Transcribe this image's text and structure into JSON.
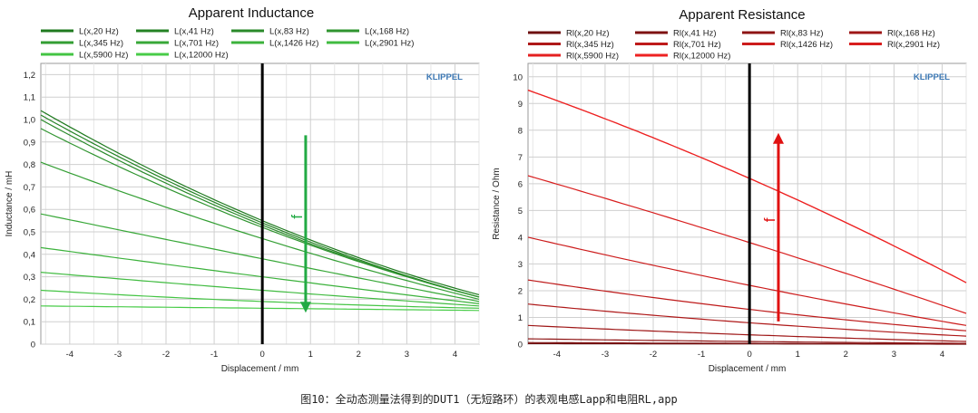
{
  "chart_data": [
    {
      "type": "line",
      "title": "Apparent Inductance",
      "xlabel": "Displacement / mm",
      "ylabel": "Inductance / mH",
      "xlim": [
        -4.6,
        4.5
      ],
      "ylim": [
        0,
        1.25
      ],
      "x_ticks": [
        -4,
        -3,
        -2,
        -1,
        0,
        1,
        2,
        3,
        4
      ],
      "y_ticks": [
        0,
        0.1,
        0.2,
        0.3,
        0.4,
        0.5,
        0.6,
        0.7,
        0.8,
        0.9,
        1.0,
        1.1,
        1.2
      ],
      "x_tick_labels": [
        "-4",
        "-3",
        "-2",
        "-1",
        "0",
        "1",
        "2",
        "3",
        "4"
      ],
      "y_tick_labels": [
        "0",
        "0,1",
        "0,2",
        "0,3",
        "0,4",
        "0,5",
        "0,6",
        "0,7",
        "0,8",
        "0,9",
        "1,0",
        "1,1",
        "1,2"
      ],
      "grid": true,
      "legend_position": "top",
      "watermark": "KLIPPEL",
      "annotation": "f",
      "arrow": {
        "direction": "down",
        "color": "#22aa44",
        "x": 0.9,
        "y_from": 0.93,
        "y_to": 0.14
      },
      "x": [
        -4.6,
        0,
        4.5
      ],
      "series": [
        {
          "name": "L(x,20 Hz)",
          "color": "#1f7a1f",
          "values": [
            1.04,
            0.55,
            0.22
          ]
        },
        {
          "name": "L(x,41 Hz)",
          "color": "#248224",
          "values": [
            1.02,
            0.54,
            0.21
          ]
        },
        {
          "name": "L(x,83 Hz)",
          "color": "#2a8a2a",
          "values": [
            1.0,
            0.53,
            0.21
          ]
        },
        {
          "name": "L(x,168 Hz)",
          "color": "#2f942f",
          "values": [
            0.96,
            0.52,
            0.21
          ]
        },
        {
          "name": "L(x,345 Hz)",
          "color": "#339e33",
          "values": [
            0.81,
            0.47,
            0.2
          ]
        },
        {
          "name": "L(x,701 Hz)",
          "color": "#38a838",
          "values": [
            0.58,
            0.38,
            0.19
          ]
        },
        {
          "name": "L(x,1426 Hz)",
          "color": "#3cb23c",
          "values": [
            0.43,
            0.3,
            0.18
          ]
        },
        {
          "name": "L(x,2901 Hz)",
          "color": "#40bb40",
          "values": [
            0.32,
            0.24,
            0.17
          ]
        },
        {
          "name": "L(x,5900 Hz)",
          "color": "#44c444",
          "values": [
            0.24,
            0.19,
            0.16
          ]
        },
        {
          "name": "L(x,12000 Hz)",
          "color": "#48cc48",
          "values": [
            0.17,
            0.16,
            0.15
          ]
        }
      ]
    },
    {
      "type": "line",
      "title": "Apparent Resistance",
      "xlabel": "Displacement / mm",
      "ylabel": "Resistance / Ohm",
      "xlim": [
        -4.6,
        4.5
      ],
      "ylim": [
        0,
        10.5
      ],
      "x_ticks": [
        -4,
        -3,
        -2,
        -1,
        0,
        1,
        2,
        3,
        4
      ],
      "y_ticks": [
        0,
        1,
        2,
        3,
        4,
        5,
        6,
        7,
        8,
        9,
        10
      ],
      "x_tick_labels": [
        "-4",
        "-3",
        "-2",
        "-1",
        "0",
        "1",
        "2",
        "3",
        "4"
      ],
      "y_tick_labels": [
        "0",
        "1",
        "2",
        "3",
        "4",
        "5",
        "6",
        "7",
        "8",
        "9",
        "10"
      ],
      "grid": true,
      "legend_position": "top",
      "watermark": "KLIPPEL",
      "annotation": "f",
      "arrow": {
        "direction": "up",
        "color": "#e01010",
        "x": 0.6,
        "y_from": 0.85,
        "y_to": 7.9
      },
      "x": [
        -4.6,
        0,
        4.5
      ],
      "series": [
        {
          "name": "Rl(x,20 Hz)",
          "color": "#6e1010",
          "values": [
            0.02,
            0.01,
            0.0
          ]
        },
        {
          "name": "Rl(x,41 Hz)",
          "color": "#7e1212",
          "values": [
            0.06,
            0.03,
            0.01
          ]
        },
        {
          "name": "Rl(x,83 Hz)",
          "color": "#8e1414",
          "values": [
            0.2,
            0.1,
            0.03
          ]
        },
        {
          "name": "Rl(x,168 Hz)",
          "color": "#9e1616",
          "values": [
            0.7,
            0.35,
            0.1
          ]
        },
        {
          "name": "Rl(x,345 Hz)",
          "color": "#ae1818",
          "values": [
            1.5,
            0.8,
            0.3
          ]
        },
        {
          "name": "Rl(x,701 Hz)",
          "color": "#be1a1a",
          "values": [
            2.4,
            1.3,
            0.5
          ]
        },
        {
          "name": "Rl(x,1426 Hz)",
          "color": "#cc1c1c",
          "values": [
            4.0,
            2.2,
            0.7
          ]
        },
        {
          "name": "Rl(x,2901 Hz)",
          "color": "#d81e1e",
          "values": [
            6.3,
            3.8,
            1.15
          ]
        },
        {
          "name": "Rl(x,5900 Hz)",
          "color": "#e42020",
          "values": [
            9.5,
            6.2,
            2.3
          ]
        },
        {
          "name": "Rl(x,12000 Hz)",
          "color": "#ee2222",
          "values": [
            9.5,
            6.2,
            2.3
          ]
        }
      ]
    }
  ],
  "caption": "图10：全动态测量法得到的DUT1（无短路环）的表观电感Lapp和电阻RL,app"
}
